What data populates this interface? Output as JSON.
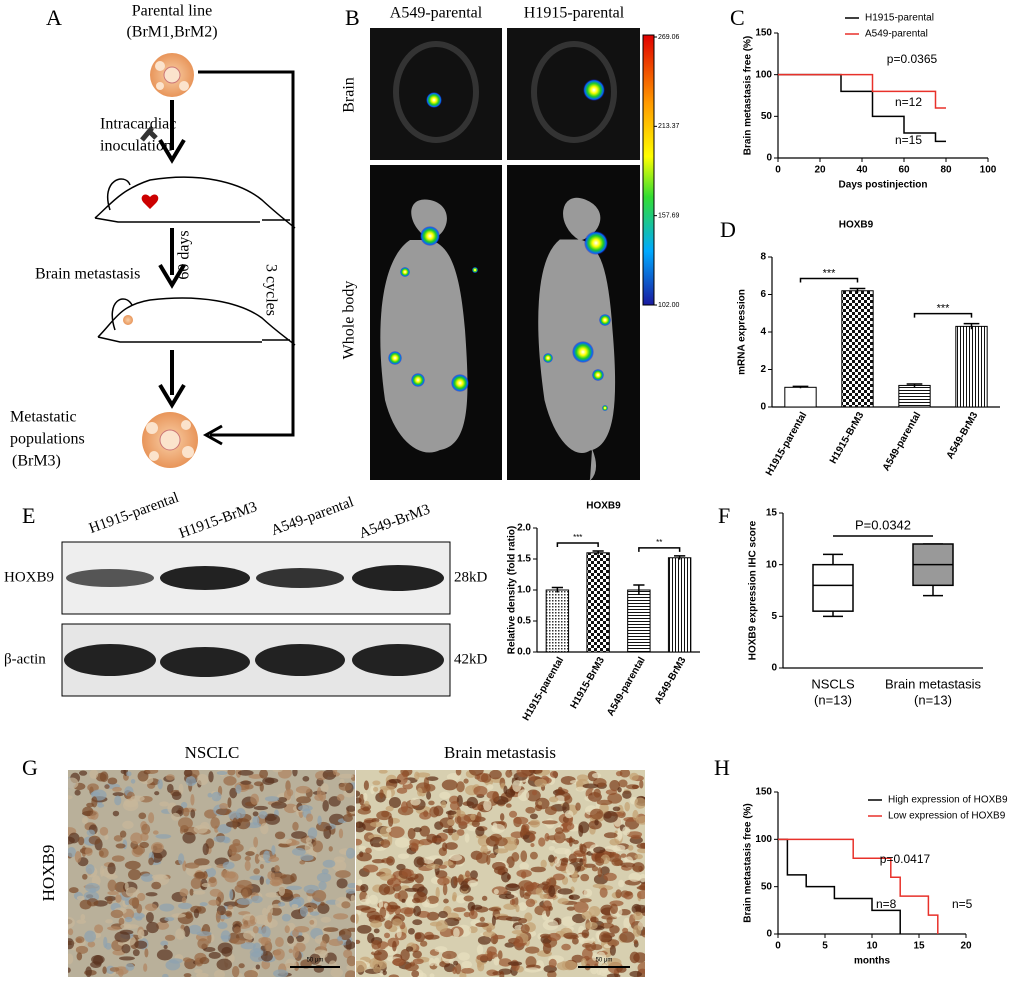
{
  "panels": {
    "A": {
      "letter": "A",
      "parental": [
        "Parental line",
        "(BrM1,BrM2)"
      ],
      "inoculation": [
        "Intracardiac",
        "inoculation"
      ],
      "days": "60 days",
      "brain": "Brain metastasis",
      "cycles": "3 cycles",
      "metastatic": [
        "Metastatic",
        "populations",
        "(BrM3)"
      ]
    },
    "B": {
      "letter": "B",
      "columns": [
        "A549-parental",
        "H1915-parental"
      ],
      "rows": [
        "Brain",
        "Whole body"
      ],
      "scale": [
        269.06,
        213.37,
        157.69,
        {
          "value": 102,
          "label": "102.00"
        }
      ]
    },
    "C": {
      "letter": "C"
    },
    "D": {
      "letter": "D"
    },
    "E": {
      "letter": "E",
      "lanes": [
        "H1915-parental",
        "H1915-BrM3",
        "A549-parental",
        "A549-BrM3"
      ],
      "rows": [
        "HOXB9",
        "β-actin"
      ],
      "sizes": [
        "28kD",
        "42kD"
      ]
    },
    "F": {
      "letter": "F"
    },
    "G": {
      "letter": "G",
      "columns": [
        "NSCLC",
        "Brain metastasis"
      ],
      "row": "HOXB9",
      "scale_bars": [
        "50 μm",
        "50 μm"
      ]
    },
    "H": {
      "letter": "H"
    }
  },
  "chart_data": [
    {
      "type": "step",
      "x": [
        0,
        30,
        45,
        60,
        75,
        80
      ],
      "series": [
        {
          "name": "H1915-parental",
          "color": "#000000",
          "values": [
            100,
            80,
            50,
            30,
            20,
            20
          ]
        },
        {
          "name": "A549-parental",
          "color": "#e8312a",
          "values": [
            100,
            100,
            80,
            80,
            60,
            60
          ]
        }
      ],
      "xlim": [
        0,
        100
      ],
      "xticks": [
        0,
        20,
        40,
        60,
        80,
        100
      ],
      "ylim": [
        0,
        150
      ],
      "yticks": [
        0,
        50,
        100,
        150
      ],
      "xlabel": "Days postinjection",
      "ylabel": "Brain metastasis free (%)",
      "legend": "upper right",
      "annotations": [
        "p=0.0365",
        "n=12",
        "n=15"
      ]
    },
    {
      "type": "bar",
      "title": "HOXB9",
      "categories": [
        "H1915-parental",
        "H1915-BrM3",
        "A549-parental",
        "A549-BrM3"
      ],
      "values": [
        1.05,
        6.2,
        1.15,
        4.3
      ],
      "errors": [
        0.05,
        0.12,
        0.08,
        0.15
      ],
      "ylim": [
        0,
        8
      ],
      "yticks": [
        0,
        2,
        4,
        6,
        8
      ],
      "ylabel": "mRNA expression",
      "patterns": [
        "none",
        "checker",
        "horizontal",
        "vertical"
      ],
      "annotations": [
        "***",
        "***"
      ]
    },
    {
      "type": "bar",
      "title": "HOXB9",
      "categories": [
        "H1915-parental",
        "H1915-BrM3",
        "A549-parental",
        "A549-BrM3"
      ],
      "values": [
        1.0,
        1.6,
        1.0,
        1.52
      ],
      "errors": [
        0.04,
        0.03,
        0.08,
        0.03
      ],
      "ylim": [
        0,
        2
      ],
      "yticks": [
        {
          "value": 0,
          "label": "0.0"
        },
        0.5,
        {
          "value": 1,
          "label": "1.0"
        },
        1.5,
        {
          "value": 2,
          "label": "2.0"
        }
      ],
      "ylabel": "Relative density (fold ratio)",
      "patterns": [
        "dots",
        "checker",
        "horizontal",
        "vertical"
      ],
      "annotations": [
        "***",
        "**"
      ]
    },
    {
      "type": "box",
      "categories": [
        "NSCLS",
        "Brain metastasis"
      ],
      "category_notes": [
        "(n=13)",
        "(n=13)"
      ],
      "boxes": [
        {
          "min": 5,
          "q1": 5.5,
          "median": 8,
          "q3": 10,
          "max": 11
        },
        {
          "min": 7,
          "q1": 8,
          "median": 10,
          "q3": 12,
          "max": 12
        }
      ],
      "ylim": [
        0,
        15
      ],
      "yticks": [
        0,
        5,
        10,
        15
      ],
      "ylabel": "HOXB9 expression IHC score",
      "patterns": [
        "none",
        "checker"
      ],
      "annotations": [
        "P=0.0342"
      ]
    },
    {
      "type": "step",
      "x": [
        0,
        1,
        3,
        6,
        8,
        10,
        12,
        13,
        16,
        17
      ],
      "series": [
        {
          "name": "High expression of HOXB9",
          "color": "#000000",
          "values": [
            100,
            62.5,
            50,
            37.5,
            37.5,
            25,
            25,
            0,
            null,
            null
          ]
        },
        {
          "name": "Low expression of HOXB9",
          "color": "#e8312a",
          "values": [
            100,
            100,
            100,
            100,
            80,
            80,
            60,
            40,
            20,
            0
          ]
        }
      ],
      "xlim": [
        0,
        20
      ],
      "xticks": [
        0,
        5,
        10,
        15,
        20
      ],
      "ylim": [
        0,
        150
      ],
      "yticks": [
        0,
        50,
        100,
        150
      ],
      "xlabel": "months",
      "ylabel": "Brain metastasis free (%)",
      "legend": "upper right",
      "annotations": [
        "p=0.0417",
        "n=8",
        "n=5"
      ]
    }
  ]
}
